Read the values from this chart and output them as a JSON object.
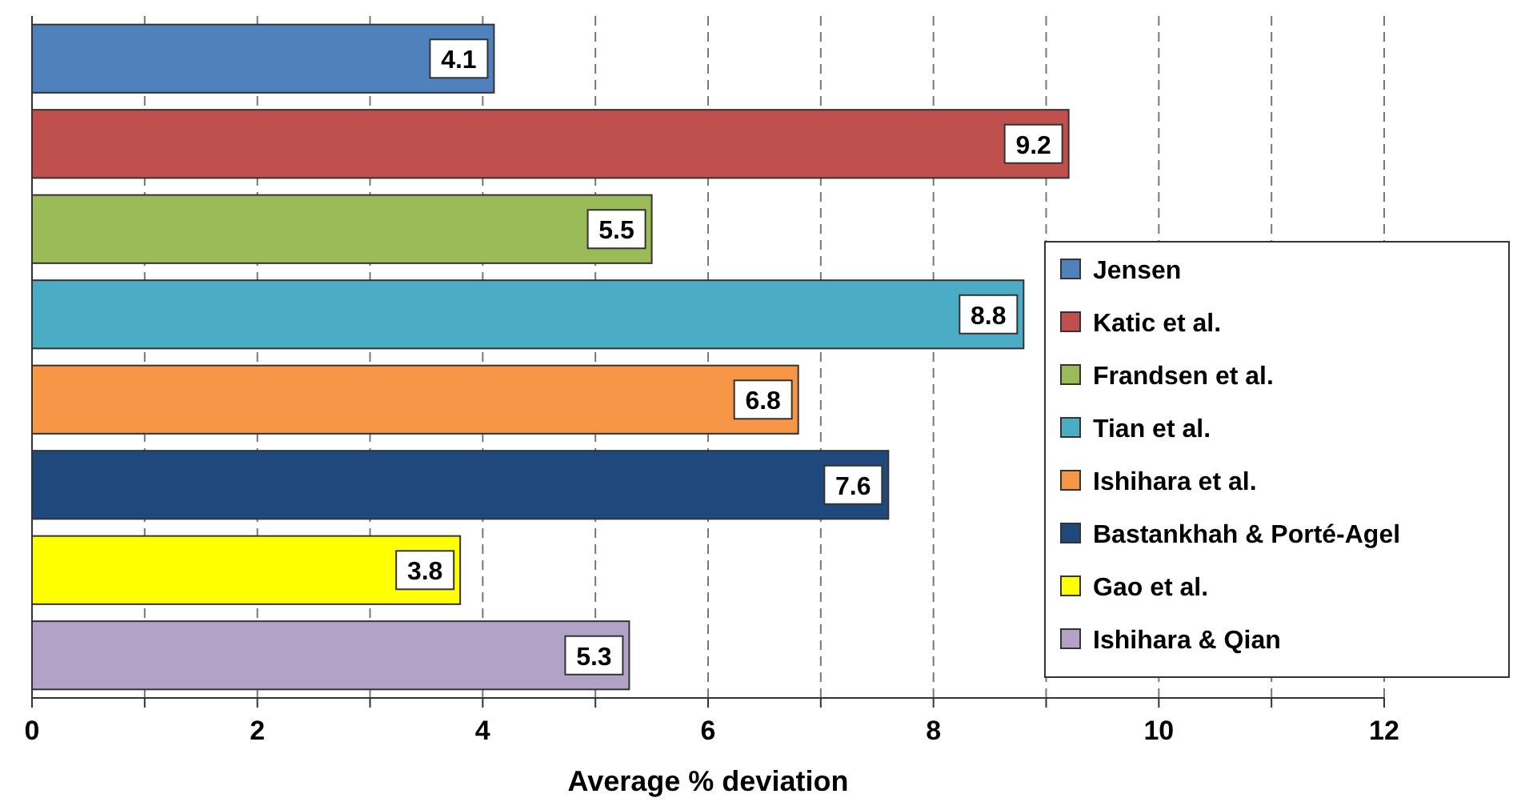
{
  "chart_data": {
    "type": "bar",
    "orientation": "horizontal",
    "xlabel": "Average % deviation",
    "categories": [
      null,
      null,
      null,
      null,
      null,
      null,
      null,
      null
    ],
    "series": [
      {
        "name": "Jensen",
        "color": "#4f81bd",
        "values": [
          4.1,
          null,
          null,
          null,
          null,
          null,
          null,
          null
        ]
      },
      {
        "name": "Katic et al.",
        "color": "#c0504d",
        "values": [
          null,
          9.2,
          null,
          null,
          null,
          null,
          null,
          null
        ]
      },
      {
        "name": "Frandsen et al.",
        "color": "#9bbb59",
        "values": [
          null,
          null,
          5.5,
          null,
          null,
          null,
          null,
          null
        ]
      },
      {
        "name": "Tian et al.",
        "color": "#4bacc6",
        "values": [
          null,
          null,
          null,
          8.8,
          null,
          null,
          null,
          null
        ]
      },
      {
        "name": "Ishihara et al.",
        "color": "#f79646",
        "values": [
          null,
          null,
          null,
          null,
          6.8,
          null,
          null,
          null
        ]
      },
      {
        "name": "Bastankhah & Porté-Agel",
        "color": "#1f497d",
        "values": [
          null,
          null,
          null,
          null,
          null,
          7.6,
          null,
          null
        ]
      },
      {
        "name": "Gao et al.",
        "color": "#ffff00",
        "values": [
          null,
          null,
          null,
          null,
          null,
          null,
          3.8,
          null
        ]
      },
      {
        "name": "Ishihara & Qian",
        "color": "#b3a2c7",
        "values": [
          null,
          null,
          null,
          null,
          null,
          null,
          null,
          5.3
        ]
      }
    ],
    "xlim": [
      0,
      12
    ],
    "xticks": [
      0,
      {
        "value": 1,
        "label": null
      },
      2,
      {
        "value": 3,
        "label": null
      },
      4,
      {
        "value": 5,
        "label": null
      },
      6,
      {
        "value": 7,
        "label": null
      },
      8,
      {
        "value": 9,
        "label": null
      },
      10,
      {
        "value": 11,
        "label": null
      },
      12
    ],
    "grid": "x",
    "data_labels": true,
    "legend": "right"
  }
}
